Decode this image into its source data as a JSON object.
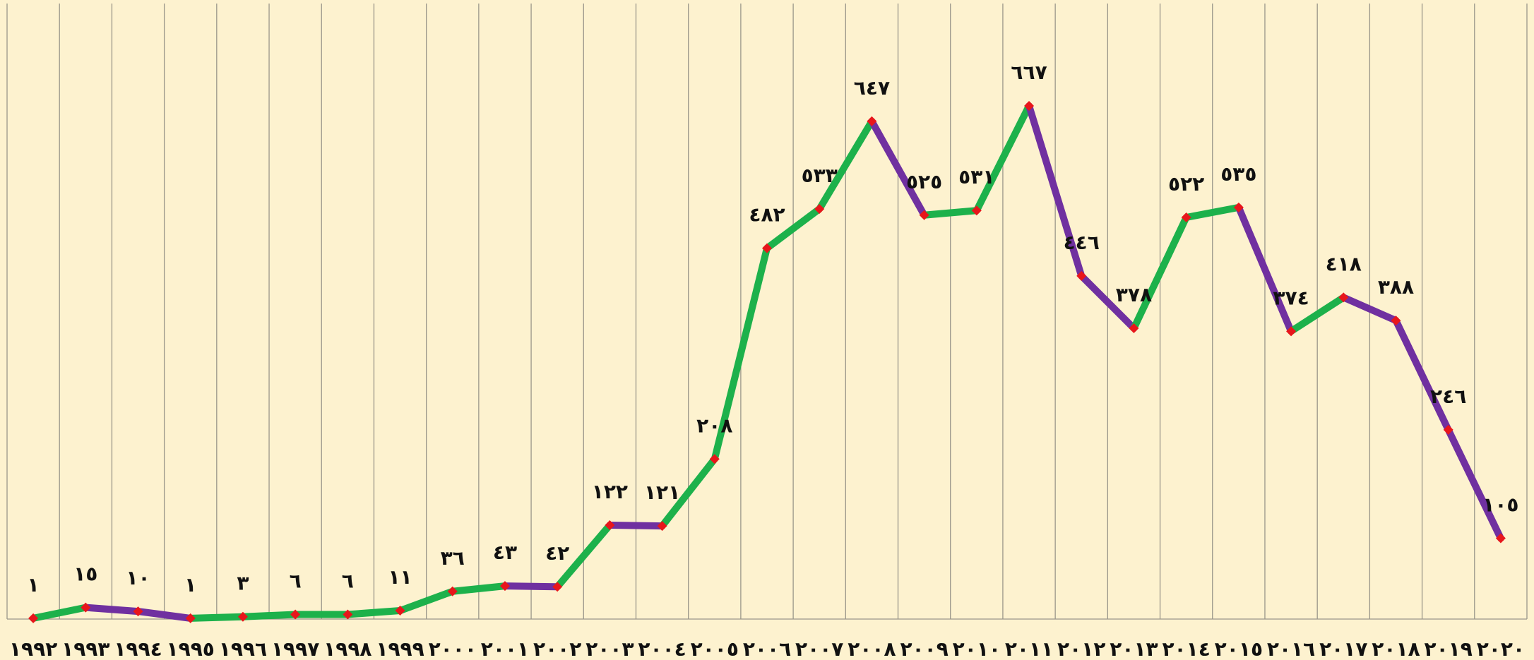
{
  "chart_data": {
    "type": "line",
    "categories": [
      "١٩٩٢",
      "١٩٩٣",
      "١٩٩٤",
      "١٩٩٥",
      "١٩٩٦",
      "١٩٩٧",
      "١٩٩٨",
      "١٩٩٩",
      "٢٠٠٠",
      "٢٠٠١",
      "٢٠٠٢",
      "٢٠٠٣",
      "٢٠٠٤",
      "٢٠٠٥",
      "٢٠٠٦",
      "٢٠٠٧",
      "٢٠٠٨",
      "٢٠٠٩",
      "٢٠١٠",
      "٢٠١١",
      "٢٠١٢",
      "٢٠١٣",
      "٢٠١٤",
      "٢٠١٥",
      "٢٠١٦",
      "٢٠١٧",
      "٢٠١٨",
      "٢٠١٩",
      "٢٠٢٠"
    ],
    "values": [
      1,
      15,
      10,
      1,
      3,
      6,
      6,
      11,
      36,
      43,
      42,
      122,
      121,
      208,
      482,
      533,
      647,
      525,
      531,
      667,
      446,
      378,
      522,
      535,
      374,
      418,
      388,
      246,
      105
    ],
    "value_labels": [
      "١",
      "١٥",
      "١٠",
      "١",
      "٣",
      "٦",
      "٦",
      "١١",
      "٣٦",
      "٤٣",
      "٤٢",
      "١٢٢",
      "١٢١",
      "٢٠٨",
      "٤٨٢",
      "٥٣٣",
      "٦٤٧",
      "٥٢٥",
      "٥٣١",
      "٦٦٧",
      "٤٤٦",
      "٣٧٨",
      "٥٢٢",
      "٥٣٥",
      "٣٧٤",
      "٤١٨",
      "٣٨٨",
      "٢٤٦",
      "١٠٥"
    ],
    "rising_color": "#1db14b",
    "falling_color": "#7030a0",
    "marker_color": "#e8161b",
    "ylim": [
      0,
      800
    ]
  }
}
